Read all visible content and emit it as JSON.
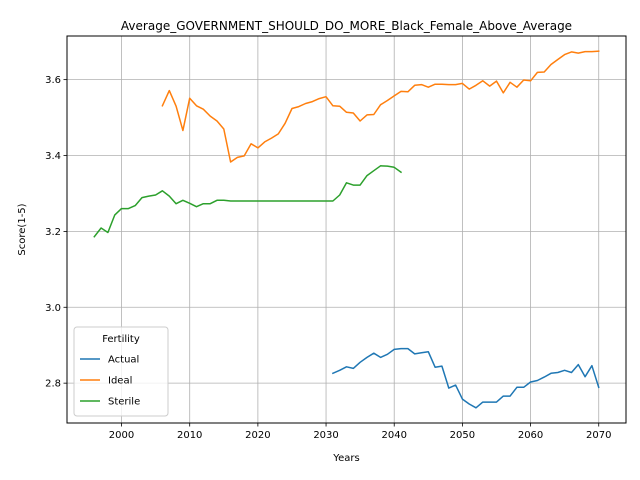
{
  "chart_data": {
    "type": "line",
    "title": "Average_GOVERNMENT_SHOULD_DO_MORE_Black_Female_Above_Average",
    "xlabel": "Years",
    "ylabel": "Score(1-5)",
    "xlim": [
      1992,
      2074
    ],
    "ylim": [
      2.695,
      3.715
    ],
    "xticks": [
      2000,
      2010,
      2020,
      2030,
      2040,
      2050,
      2060,
      2070
    ],
    "yticks": [
      2.8,
      3.0,
      3.2,
      3.4,
      3.6
    ],
    "xtick_labels": [
      "2000",
      "2010",
      "2020",
      "2030",
      "2040",
      "2050",
      "2060",
      "2070"
    ],
    "ytick_labels": [
      "2.8",
      "3.0",
      "3.2",
      "3.4",
      "3.6"
    ],
    "grid": true,
    "legend": {
      "title": "Fertility",
      "position": "lower-left"
    },
    "series": [
      {
        "name": "Actual",
        "color": "#1f77b4",
        "x": [
          2031,
          2032,
          2033,
          2034,
          2035,
          2036,
          2037,
          2038,
          2039,
          2040,
          2041,
          2042,
          2043,
          2044,
          2045,
          2046,
          2047,
          2048,
          2049,
          2050,
          2051,
          2052,
          2053,
          2054,
          2055,
          2056,
          2057,
          2058,
          2059,
          2060,
          2061,
          2062,
          2063,
          2064,
          2065,
          2066,
          2067,
          2068,
          2069,
          2070
        ],
        "y": [
          2.826,
          2.834,
          2.843,
          2.839,
          2.855,
          2.868,
          2.879,
          2.868,
          2.876,
          2.889,
          2.891,
          2.891,
          2.877,
          2.88,
          2.883,
          2.842,
          2.845,
          2.787,
          2.795,
          2.758,
          2.745,
          2.735,
          2.75,
          2.75,
          2.75,
          2.766,
          2.766,
          2.789,
          2.789,
          2.803,
          2.807,
          2.816,
          2.826,
          2.828,
          2.834,
          2.828,
          2.849,
          2.817,
          2.846,
          2.789
        ]
      },
      {
        "name": "Ideal",
        "color": "#ff7f0e",
        "x": [
          2006,
          2007,
          2008,
          2009,
          2010,
          2011,
          2012,
          2013,
          2014,
          2015,
          2016,
          2017,
          2018,
          2019,
          2020,
          2021,
          2022,
          2023,
          2024,
          2025,
          2026,
          2027,
          2028,
          2029,
          2030,
          2031,
          2032,
          2033,
          2034,
          2035,
          2036,
          2037,
          2038,
          2039,
          2040,
          2041,
          2042,
          2043,
          2044,
          2045,
          2046,
          2047,
          2048,
          2049,
          2050,
          2051,
          2052,
          2053,
          2054,
          2055,
          2056,
          2057,
          2058,
          2059,
          2060,
          2061,
          2062,
          2063,
          2064,
          2065,
          2066,
          2067,
          2068,
          2069,
          2070
        ],
        "y": [
          3.531,
          3.571,
          3.53,
          3.466,
          3.551,
          3.531,
          3.522,
          3.504,
          3.491,
          3.47,
          3.383,
          3.395,
          3.399,
          3.431,
          3.42,
          3.436,
          3.446,
          3.457,
          3.485,
          3.524,
          3.529,
          3.537,
          3.542,
          3.55,
          3.555,
          3.531,
          3.53,
          3.514,
          3.512,
          3.491,
          3.507,
          3.508,
          3.534,
          3.545,
          3.557,
          3.569,
          3.568,
          3.585,
          3.587,
          3.58,
          3.588,
          3.588,
          3.587,
          3.587,
          3.59,
          3.575,
          3.585,
          3.597,
          3.583,
          3.596,
          3.565,
          3.593,
          3.58,
          3.599,
          3.597,
          3.619,
          3.62,
          3.64,
          3.653,
          3.666,
          3.673,
          3.67,
          3.674,
          3.674,
          3.675
        ]
      },
      {
        "name": "Sterile",
        "color": "#2ca02c",
        "x": [
          1996,
          1997,
          1998,
          1999,
          2000,
          2001,
          2002,
          2003,
          2004,
          2005,
          2006,
          2007,
          2008,
          2009,
          2010,
          2011,
          2012,
          2013,
          2014,
          2015,
          2016,
          2017,
          2018,
          2019,
          2020,
          2021,
          2022,
          2023,
          2024,
          2025,
          2026,
          2027,
          2028,
          2029,
          2030,
          2031,
          2032,
          2033,
          2034,
          2035,
          2036,
          2037,
          2038,
          2039,
          2040,
          2041
        ],
        "y": [
          3.186,
          3.209,
          3.197,
          3.243,
          3.26,
          3.26,
          3.268,
          3.289,
          3.293,
          3.296,
          3.307,
          3.293,
          3.273,
          3.282,
          3.274,
          3.265,
          3.273,
          3.273,
          3.282,
          3.282,
          3.28,
          3.28,
          3.28,
          3.28,
          3.28,
          3.28,
          3.28,
          3.28,
          3.28,
          3.28,
          3.28,
          3.28,
          3.28,
          3.28,
          3.28,
          3.28,
          3.296,
          3.328,
          3.322,
          3.322,
          3.347,
          3.36,
          3.373,
          3.372,
          3.369,
          3.356
        ]
      }
    ]
  }
}
